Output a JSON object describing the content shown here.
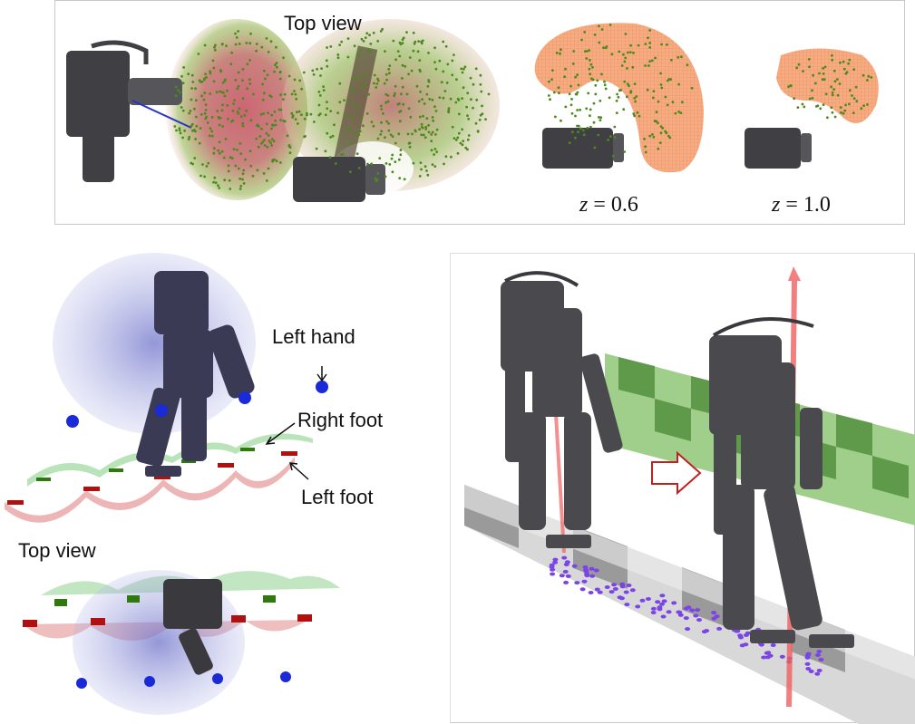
{
  "top_panel": {
    "top_view_label": "Top view",
    "slice_1_label": "z = 0.6",
    "slice_1_var": "z",
    "slice_1_value": "= 0.6",
    "slice_2_var": "z",
    "slice_2_value": "= 1.0"
  },
  "left_panel": {
    "left_hand_label": "Left hand",
    "right_foot_label": "Right foot",
    "left_foot_label": "Left foot",
    "top_view_label": "Top view"
  },
  "colors": {
    "robot": "#4a4a4e",
    "robot_dark": "#2e2e33",
    "point_green": "#4c8a1e",
    "point_red": "#e05a5a",
    "blob_orange": "#f3b07a",
    "blob_pink": "#f4b8b8",
    "reach_blue": "#6f74c9",
    "target_blue": "#1a2ad8",
    "foot_red": "#b01010",
    "foot_green": "#2e7a0c",
    "swing_red": "#e8a3a3",
    "swing_green": "#a8dca8",
    "contact_purple": "#7b44e6",
    "wall_green_a": "#5f9a4a",
    "wall_green_b": "#9fcf8a",
    "beam_grey_a": "#9a9a9a",
    "beam_grey_b": "#d8d8d8",
    "arrow_red": "#f06060"
  },
  "icons": [
    "robot-figure",
    "right-arrow-outline",
    "up-arrow"
  ]
}
